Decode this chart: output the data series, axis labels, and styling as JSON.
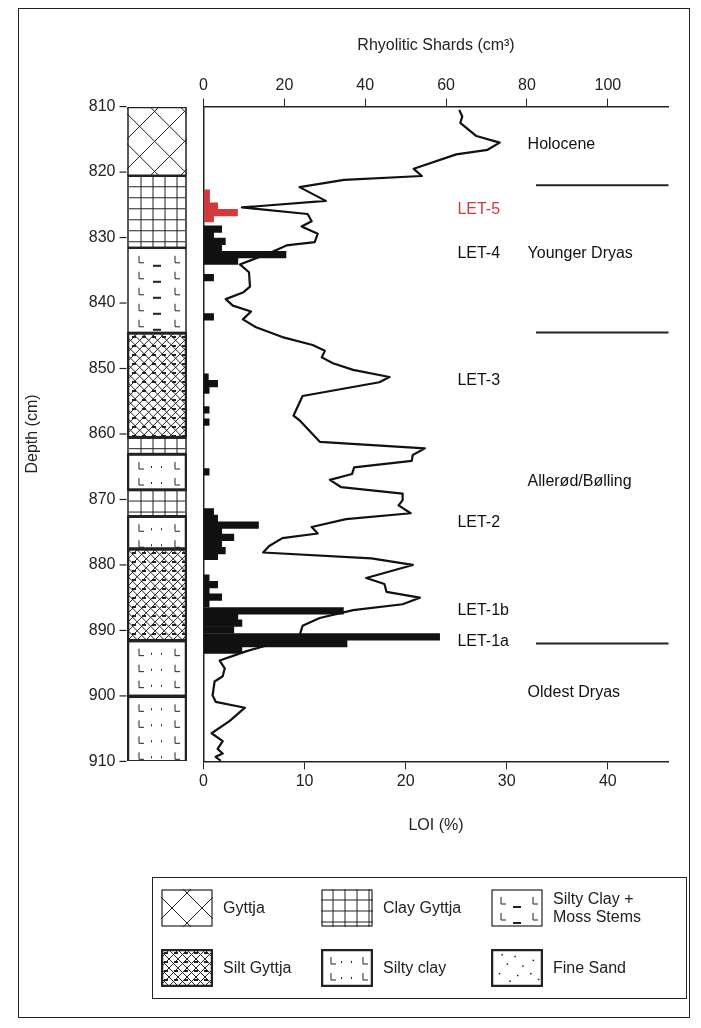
{
  "chart_data": {
    "type": "bar",
    "orientation": "horizontal",
    "x2label": "Rhyolitic Shards (cm³)",
    "xlabel": "LOI (%)",
    "ylabel": "Depth (cm)",
    "ylim": [
      910,
      810
    ],
    "yticks": [
      810,
      820,
      830,
      840,
      850,
      860,
      870,
      880,
      890,
      900,
      910
    ],
    "xlim": [
      0,
      46
    ],
    "xticks": [
      0,
      10,
      20,
      30,
      40
    ],
    "x2lim": [
      0,
      115
    ],
    "x2ticks": [
      0,
      20,
      40,
      60,
      80,
      100
    ],
    "series": [
      {
        "axis": "x2",
        "x": [
          823.2,
          824.2,
          825.2,
          826.2,
          827.1,
          828.7,
          829.6,
          830.6,
          831.6,
          832.6,
          833.6,
          836.1,
          842.1,
          851.3,
          852.3,
          853.3,
          856.3,
          858.2,
          865.8,
          871.9,
          872.9,
          873.9,
          874.9,
          875.8,
          876.8,
          877.8,
          878.7,
          882.0,
          883.0,
          884.0,
          884.9,
          885.9,
          887.0,
          888.0,
          888.9,
          889.9,
          891.0,
          892.0,
          893.0
        ],
        "values": [
          1.5,
          1.5,
          3.5,
          8.4,
          2.5,
          4.5,
          2.5,
          5.4,
          4.5,
          20.4,
          8.5,
          2.5,
          2.5,
          1.2,
          3.5,
          1.4,
          1.4,
          1.4,
          1.4,
          2.5,
          3.5,
          13.6,
          4.5,
          7.5,
          4.5,
          5.4,
          3.5,
          1.4,
          3.5,
          1.4,
          4.5,
          1.4,
          34.6,
          8.5,
          9.5,
          7.5,
          58.4,
          35.5,
          9.5
        ],
        "colors": [
          "#d2393b",
          "#d2393b",
          "#d2393b",
          "#d2393b",
          "#d2393b",
          "#111111",
          "#111111",
          "#111111",
          "#111111",
          "#111111",
          "#111111",
          "#111111",
          "#111111",
          "#111111",
          "#111111",
          "#111111",
          "#111111",
          "#111111",
          "#111111",
          "#111111",
          "#111111",
          "#111111",
          "#111111",
          "#111111",
          "#111111",
          "#111111",
          "#111111",
          "#111111",
          "#111111",
          "#111111",
          "#111111",
          "#111111",
          "#111111",
          "#111111",
          "#111111",
          "#111111",
          "#111111",
          "#111111",
          "#111111"
        ]
      },
      {
        "type": "line",
        "color": "#111111",
        "marker": "none",
        "x": [
          810.5,
          811.5,
          812.5,
          814.5,
          815.5,
          816.6,
          817.3,
          819.5,
          820.6,
          821.2,
          822.3,
          824.4,
          825.4,
          826.4,
          827.5,
          828.3,
          829.4,
          830.7,
          831.2,
          832.4,
          834.1,
          835.3,
          837.5,
          838.4,
          839.4,
          840.4,
          841.3,
          842.5,
          843.7,
          845.2,
          846.4,
          847.3,
          848.3,
          849.2,
          850.2,
          851.3,
          852.1,
          854.2,
          857.2,
          857.9,
          861.2,
          862.2,
          863.2,
          864.1,
          865.1,
          866.1,
          867.0,
          868.1,
          869.1,
          870.1,
          870.9,
          872.1,
          873.0,
          874.2,
          875.2,
          875.9,
          877.1,
          878.1,
          879.0,
          880.0,
          882.0,
          882.9,
          884.1,
          885.0,
          886.0,
          886.9,
          888.1,
          889.3,
          890.8,
          893.2,
          894.6,
          895.8,
          897.0,
          897.8,
          899.9,
          900.9,
          901.8,
          903.8,
          905.7,
          906.9,
          908.1,
          908.8,
          909.3,
          909.9
        ],
        "values": [
          25.3,
          25.6,
          25.4,
          27.0,
          29.3,
          28.1,
          25.0,
          20.8,
          21.6,
          13.9,
          9.5,
          12.1,
          3.8,
          10.3,
          10.7,
          9.7,
          11.3,
          11.0,
          8.2,
          6.5,
          3.6,
          4.5,
          4.6,
          3.9,
          2.2,
          2.9,
          4.7,
          3.9,
          5.2,
          7.8,
          10.8,
          12.0,
          11.7,
          12.8,
          14.8,
          18.4,
          17.4,
          9.8,
          8.9,
          9.5,
          11.5,
          21.9,
          20.7,
          20.6,
          14.9,
          14.7,
          12.5,
          13.6,
          19.7,
          19.7,
          19.3,
          20.5,
          14.1,
          10.7,
          11.3,
          7.8,
          6.5,
          5.9,
          16.6,
          20.7,
          16.1,
          17.9,
          18.1,
          21.4,
          19.7,
          14.8,
          11.5,
          9.8,
          9.5,
          4.2,
          1.6,
          2.1,
          1.9,
          1.1,
          0.9,
          1.2,
          4.1,
          2.6,
          0.8,
          1.9,
          1.4,
          1.9,
          1.2,
          1.7
        ]
      }
    ],
    "ref_lines": [
      {
        "axis": "y",
        "value": 822
      },
      {
        "axis": "y",
        "value": 844.5
      },
      {
        "axis": "y",
        "value": 892
      }
    ],
    "annotations": [
      "Holocene",
      "LET-5",
      "LET-4",
      "Younger Dryas",
      "LET-3",
      "Allerød/Bølling",
      "LET-2",
      "LET-1b",
      "LET-1a",
      "Oldest Dryas",
      "Gyttja",
      "Clay Gyttja",
      "Silty Clay + Moss Stems",
      "Silt Gyttja",
      "Silty clay",
      "Fine Sand"
    ]
  }
}
